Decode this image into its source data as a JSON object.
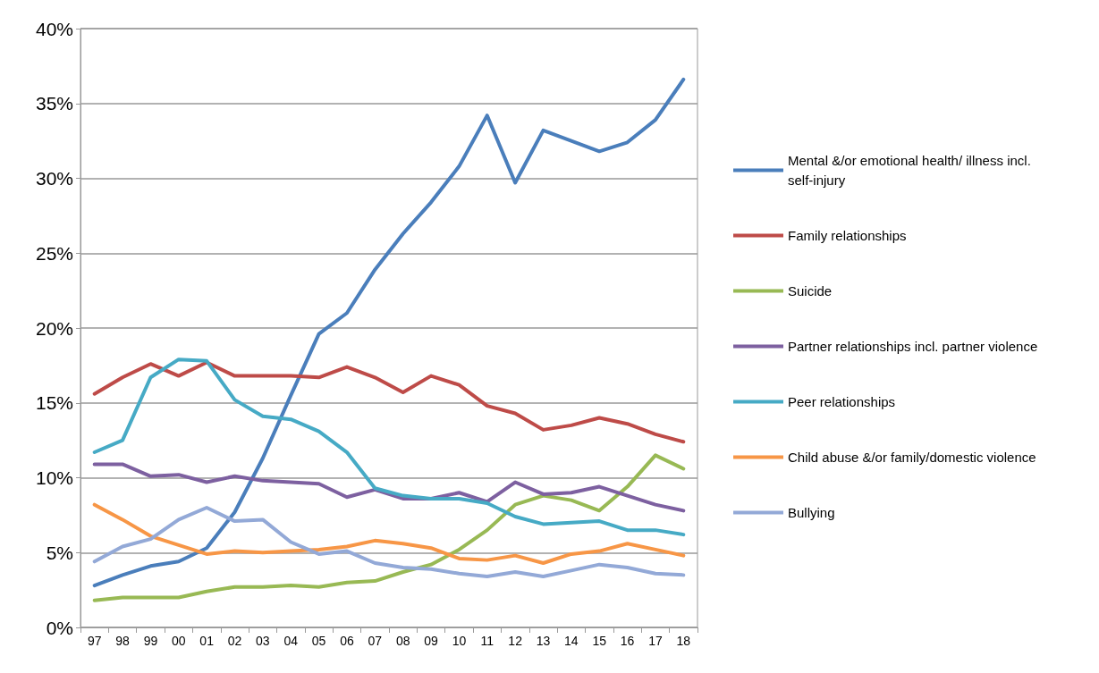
{
  "chart_data": {
    "type": "line",
    "categories": [
      "97",
      "98",
      "99",
      "00",
      "01",
      "02",
      "03",
      "04",
      "05",
      "06",
      "07",
      "08",
      "09",
      "10",
      "11",
      "12",
      "13",
      "14",
      "15",
      "16",
      "17",
      "18"
    ],
    "series": [
      {
        "name": "Mental &/or emotional health/ illness incl. self-injury",
        "color": "#4a7ebb",
        "values": [
          2.8,
          3.5,
          4.1,
          4.4,
          5.3,
          7.7,
          11.3,
          15.5,
          19.6,
          21.0,
          23.9,
          26.3,
          28.4,
          30.8,
          34.2,
          29.7,
          33.2,
          32.5,
          31.8,
          32.4,
          33.9,
          36.6
        ]
      },
      {
        "name": "Family relationships",
        "color": "#be4b48",
        "values": [
          15.6,
          16.7,
          17.6,
          16.8,
          17.7,
          16.8,
          16.8,
          16.8,
          16.7,
          17.4,
          16.7,
          15.7,
          16.8,
          16.2,
          14.8,
          14.3,
          13.2,
          13.5,
          14.0,
          13.6,
          12.9,
          12.4
        ]
      },
      {
        "name": "Suicide",
        "color": "#98b954",
        "values": [
          1.8,
          2.0,
          2.0,
          2.0,
          2.4,
          2.7,
          2.7,
          2.8,
          2.7,
          3.0,
          3.1,
          3.7,
          4.2,
          5.2,
          6.5,
          8.2,
          8.8,
          8.5,
          7.8,
          9.4,
          11.5,
          10.6
        ]
      },
      {
        "name": "Partner relationships incl. partner violence",
        "color": "#7d60a0",
        "values": [
          10.9,
          10.9,
          10.1,
          10.2,
          9.7,
          10.1,
          9.8,
          9.7,
          9.6,
          8.7,
          9.2,
          8.6,
          8.6,
          9.0,
          8.4,
          9.7,
          8.9,
          9.0,
          9.4,
          8.8,
          8.2,
          7.8
        ]
      },
      {
        "name": "Peer relationships",
        "color": "#46aac5",
        "values": [
          11.7,
          12.5,
          16.7,
          17.9,
          17.8,
          15.2,
          14.1,
          13.9,
          13.1,
          11.7,
          9.3,
          8.8,
          8.6,
          8.6,
          8.3,
          7.4,
          6.9,
          7.0,
          7.1,
          6.5,
          6.5,
          6.2
        ]
      },
      {
        "name": "Child abuse &/or family/domestic violence",
        "color": "#f79646",
        "values": [
          8.2,
          7.2,
          6.1,
          5.5,
          4.9,
          5.1,
          5.0,
          5.1,
          5.2,
          5.4,
          5.8,
          5.6,
          5.3,
          4.6,
          4.5,
          4.8,
          4.3,
          4.9,
          5.1,
          5.6,
          5.2,
          4.8
        ]
      },
      {
        "name": "Bullying",
        "color": "#93a9d7",
        "values": [
          4.4,
          5.4,
          5.9,
          7.2,
          8.0,
          7.1,
          7.2,
          5.7,
          4.9,
          5.1,
          4.3,
          4.0,
          3.9,
          3.6,
          3.4,
          3.7,
          3.4,
          3.8,
          4.2,
          4.0,
          3.6,
          3.5
        ]
      }
    ],
    "ylim": [
      0,
      40
    ],
    "yticks": [
      {
        "value": 0,
        "label": "0%"
      },
      {
        "value": 5,
        "label": "5%"
      },
      {
        "value": 10,
        "label": "10%"
      },
      {
        "value": 15,
        "label": "15%"
      },
      {
        "value": 20,
        "label": "20%"
      },
      {
        "value": 25,
        "label": "25%"
      },
      {
        "value": 30,
        "label": "30%"
      },
      {
        "value": 35,
        "label": "35%"
      },
      {
        "value": 40,
        "label": "40%"
      }
    ],
    "grid": "y",
    "legend": "right",
    "marker": "none",
    "line_style": "solid"
  }
}
